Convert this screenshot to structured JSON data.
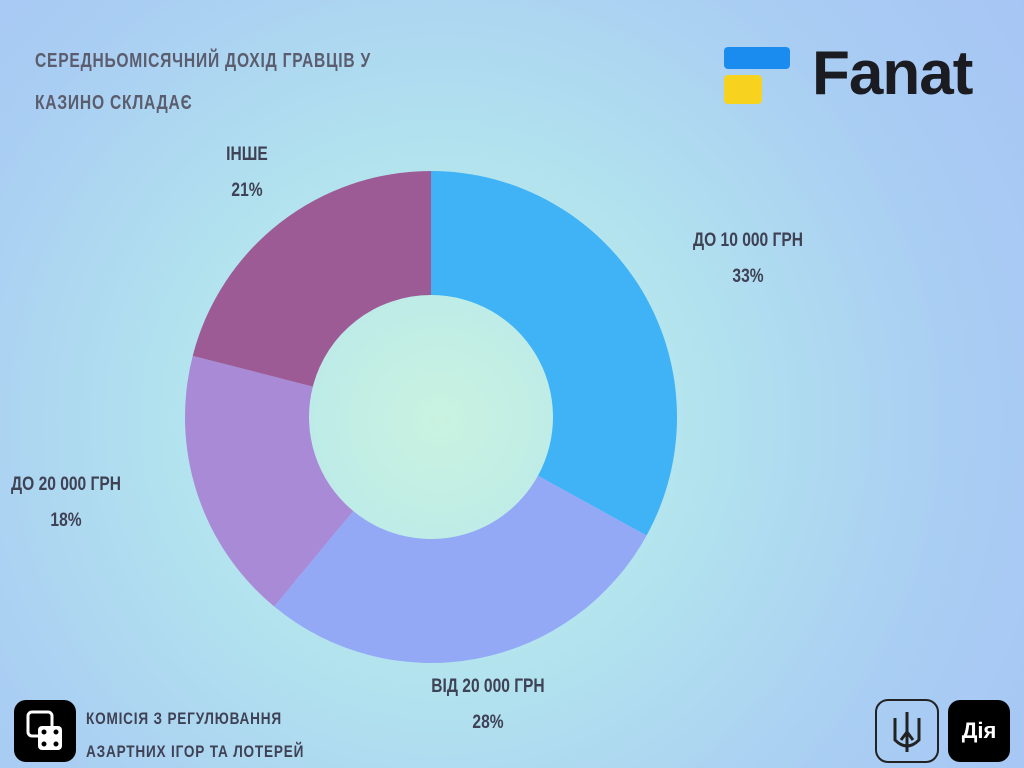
{
  "chart_data": {
    "type": "pie",
    "title": "СЕРЕДНЬОМІСЯЧНИЙ ДОХІД ГРАВЦІВ У КАЗИНО СКЛАДАЄ",
    "categories": [
      "ДО 10 000 ГРН",
      "ВІД 20 000 ГРН",
      "ДО 20 000 ГРН",
      "ІНШЕ"
    ],
    "values": [
      33,
      28,
      18,
      21
    ],
    "value_labels": [
      "33%",
      "28%",
      "18%",
      "21%"
    ],
    "colors": [
      "#40b2f6",
      "#93a9f6",
      "#a98ad6",
      "#9d5b96"
    ],
    "donut": true
  },
  "logo": "Fanat",
  "footer": {
    "lines": [
      "КОМІСІЯ З РЕГУЛЮВАННЯ",
      "АЗАРТНИХ ІГОР ТА ЛОТЕРЕЙ"
    ],
    "badge": "Дія"
  }
}
